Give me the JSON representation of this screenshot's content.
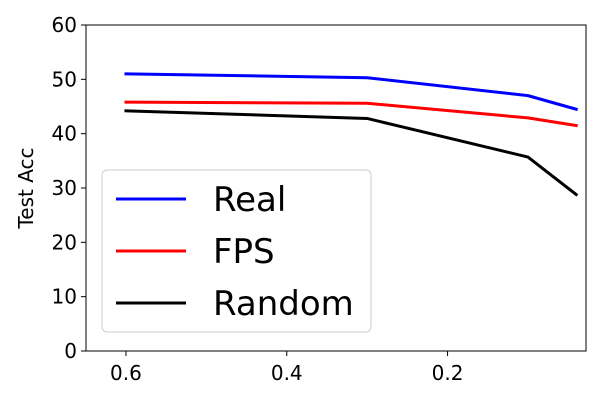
{
  "chart_data": {
    "type": "line",
    "title": "",
    "xlabel": "",
    "ylabel": "Test Acc",
    "x_reversed": true,
    "xlim": [
      0.6497,
      0.0278
    ],
    "ylim": [
      0,
      60
    ],
    "xticks": [
      0.6,
      0.4,
      0.2
    ],
    "xtick_labels": [
      "0.6",
      "0.4",
      "0.2"
    ],
    "yticks": [
      0,
      10,
      20,
      30,
      40,
      50,
      60
    ],
    "ytick_labels": [
      "0",
      "10",
      "20",
      "30",
      "40",
      "50",
      "60"
    ],
    "grid": false,
    "legend_position": "lower-left",
    "series": [
      {
        "name": "Real",
        "color": "#0000ff",
        "x": [
          0.6,
          0.3,
          0.1,
          0.04
        ],
        "values": [
          51.0,
          50.3,
          47.0,
          44.5
        ]
      },
      {
        "name": "FPS",
        "color": "#ff0000",
        "x": [
          0.6,
          0.3,
          0.1,
          0.04
        ],
        "values": [
          45.8,
          45.6,
          42.9,
          41.5
        ]
      },
      {
        "name": "Random",
        "color": "#000000",
        "x": [
          0.6,
          0.3,
          0.1,
          0.04
        ],
        "values": [
          44.2,
          42.8,
          35.7,
          28.8
        ]
      }
    ]
  }
}
